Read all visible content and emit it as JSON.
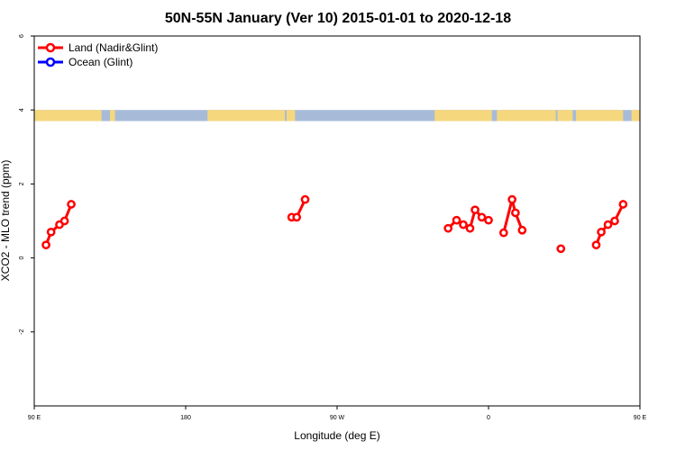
{
  "chart_data": {
    "type": "line",
    "title": "50N-55N January (Ver 10)   2015-01-01 to 2020-12-18",
    "xlabel": "Longitude (deg E)",
    "ylabel": "XCO2 - MLO trend (ppm)",
    "xlim": [
      90,
      450
    ],
    "ylim": [
      -4,
      6
    ],
    "x_ticks": [
      {
        "value": 90,
        "label": "90 E"
      },
      {
        "value": 180,
        "label": "180"
      },
      {
        "value": 270,
        "label": "90 W"
      },
      {
        "value": 360,
        "label": "0"
      },
      {
        "value": 450,
        "label": "90 E"
      },
      {
        "value": 540,
        "label": "180"
      }
    ],
    "y_ticks": [
      {
        "value": -2,
        "label": "-2"
      },
      {
        "value": 0,
        "label": "0"
      },
      {
        "value": 2,
        "label": "2"
      },
      {
        "value": 4,
        "label": "4"
      },
      {
        "value": 6,
        "label": "6"
      }
    ],
    "legend": {
      "placement": "top-left",
      "entries": [
        {
          "name": "Land (Nadir&Glint)",
          "color": "#ff0000"
        },
        {
          "name": "Ocean (Glint)",
          "color": "#0000ff"
        }
      ]
    },
    "series": [
      {
        "name": "Land (Nadir&Glint)",
        "color": "#ff0000",
        "segments": [
          [
            [
              97,
              0.35
            ],
            [
              100,
              0.7
            ],
            [
              105,
              0.9
            ],
            [
              108,
              1.0
            ],
            [
              112,
              1.45
            ]
          ],
          [
            [
              243,
              1.1
            ],
            [
              246,
              1.1
            ],
            [
              251,
              1.58
            ]
          ],
          [
            [
              336,
              0.8
            ],
            [
              341,
              1.02
            ],
            [
              345,
              0.9
            ],
            [
              349,
              0.8
            ],
            [
              352,
              1.3
            ],
            [
              356,
              1.1
            ],
            [
              360,
              1.02
            ]
          ],
          [
            [
              369,
              0.68
            ],
            [
              374,
              1.58
            ],
            [
              376,
              1.22
            ],
            [
              380,
              0.75
            ]
          ],
          [
            [
              403,
              0.25
            ]
          ],
          [
            [
              424,
              0.35
            ],
            [
              427,
              0.7
            ],
            [
              431,
              0.9
            ],
            [
              435,
              1.0
            ],
            [
              440,
              1.45
            ]
          ]
        ]
      },
      {
        "name": "Ocean (Glint)",
        "color": "#0000ff",
        "segments": []
      }
    ],
    "land_ocean_strip": {
      "y_range": [
        3.7,
        4.0
      ],
      "land_color": "#f5d77e",
      "ocean_color": "#a7bbd9",
      "land_spans": [
        [
          90,
          130
        ],
        [
          135,
          138
        ],
        [
          193,
          239
        ],
        [
          240,
          245
        ],
        [
          328,
          362
        ],
        [
          365,
          400
        ],
        [
          401,
          410
        ],
        [
          412,
          440
        ],
        [
          445,
          450
        ]
      ]
    }
  }
}
